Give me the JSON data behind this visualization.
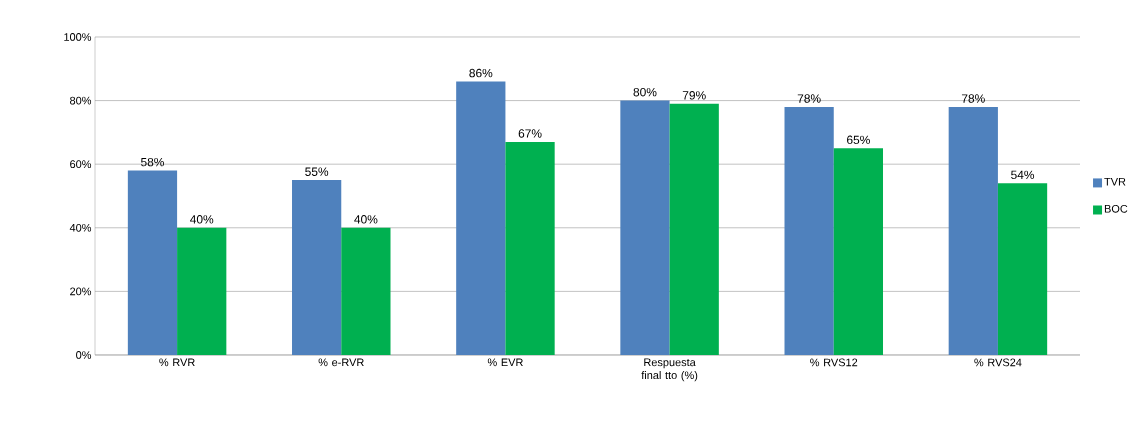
{
  "chart_data": {
    "type": "bar",
    "categories": [
      "% RVR",
      "% e-RVR",
      "% EVR",
      "Respuesta final tto (%)",
      "% RVS12",
      "% RVS24"
    ],
    "series": [
      {
        "name": "TVR",
        "color": "#4f81bd",
        "values": [
          58,
          55,
          86,
          80,
          78,
          78
        ],
        "value_labels": [
          "58%",
          "55%",
          "86%",
          "80%",
          "78%",
          "78%"
        ]
      },
      {
        "name": "BOC",
        "color": "#00b050",
        "values": [
          40,
          40,
          67,
          79,
          65,
          54
        ],
        "value_labels": [
          "40%",
          "40%",
          "67%",
          "79%",
          "65%",
          "54%"
        ]
      }
    ],
    "ylim": [
      0,
      100
    ],
    "yticks": [
      {
        "value": 0,
        "label": "0%"
      },
      {
        "value": 20,
        "label": "20%"
      },
      {
        "value": 40,
        "label": "40%"
      },
      {
        "value": 60,
        "label": "60%"
      },
      {
        "value": 80,
        "label": "80%"
      },
      {
        "value": 100,
        "label": "100%"
      }
    ],
    "grid": "y",
    "legend": "right"
  }
}
